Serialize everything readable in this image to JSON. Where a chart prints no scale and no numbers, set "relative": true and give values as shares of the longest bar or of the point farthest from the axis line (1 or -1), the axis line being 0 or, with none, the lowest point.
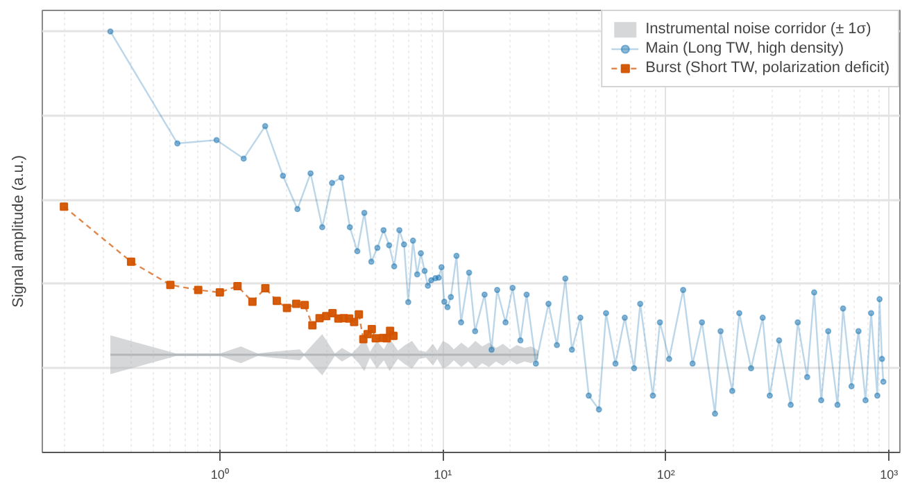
{
  "chart_data": {
    "type": "line",
    "ylabel": "Signal amplitude (a.u.)",
    "relative": true,
    "log": "x",
    "xlim": [
      0.16,
      1120
    ],
    "xticks": [
      {
        "value": 1,
        "label": "10⁰"
      },
      {
        "value": 10,
        "label": "10¹"
      },
      {
        "value": 100,
        "label": "10²"
      },
      {
        "value": 1000,
        "label": "10³"
      }
    ],
    "tick_labels": "x",
    "grid": true,
    "legend": "top right",
    "series": [
      {
        "name": "Instrumental noise corridor (± 1σ)",
        "color": "#b3b7b9",
        "x": [
          0.323,
          0.638,
          1.0,
          1.243,
          1.478,
          1.709,
          2.283,
          2.385,
          2.878,
          3.28,
          3.526,
          3.9,
          4.195,
          4.445,
          4.71,
          5.06,
          5.44,
          5.77,
          6.29,
          6.77,
          7.27,
          7.82,
          8.41,
          9.03,
          9.44,
          10.0,
          10.6,
          11.2,
          12.1,
          13.0,
          14.0,
          15.0,
          16.1,
          17.3,
          18.6,
          20.0,
          21.5,
          23.2,
          24.9,
          26.8
        ],
        "values": [
          0.232,
          0.232,
          0.232,
          0.232,
          0.232,
          0.232,
          0.232,
          0.232,
          0.232,
          0.232,
          0.232,
          0.232,
          0.232,
          0.232,
          0.232,
          0.232,
          0.232,
          0.232,
          0.232,
          0.232,
          0.232,
          0.232,
          0.232,
          0.232,
          0.232,
          0.232,
          0.232,
          0.232,
          0.232,
          0.232,
          0.232,
          0.232,
          0.232,
          0.232,
          0.232,
          0.232,
          0.232,
          0.232,
          0.232,
          0.232
        ],
        "lower": [
          0.186,
          0.229,
          0.229,
          0.212,
          0.229,
          0.225,
          0.219,
          0.23,
          0.183,
          0.229,
          0.216,
          0.229,
          0.212,
          0.193,
          0.225,
          0.199,
          0.219,
          0.193,
          0.222,
          0.209,
          0.199,
          0.222,
          0.225,
          0.206,
          0.222,
          0.199,
          0.206,
          0.219,
          0.203,
          0.216,
          0.199,
          0.212,
          0.203,
          0.216,
          0.206,
          0.219,
          0.209,
          0.216,
          0.212,
          0.222
        ],
        "upper": [
          0.278,
          0.235,
          0.235,
          0.252,
          0.235,
          0.239,
          0.245,
          0.234,
          0.281,
          0.235,
          0.248,
          0.235,
          0.252,
          0.271,
          0.239,
          0.265,
          0.245,
          0.271,
          0.242,
          0.255,
          0.265,
          0.242,
          0.239,
          0.258,
          0.242,
          0.265,
          0.258,
          0.245,
          0.261,
          0.248,
          0.265,
          0.252,
          0.261,
          0.248,
          0.258,
          0.245,
          0.255,
          0.248,
          0.252,
          0.242
        ]
      },
      {
        "name": "Main (Long TW, high density)",
        "color": "#1f77b4",
        "marker": "circle",
        "line_style": "solid",
        "x": [
          0.323,
          0.645,
          0.967,
          1.279,
          1.597,
          1.919,
          2.228,
          2.552,
          2.878,
          3.185,
          3.511,
          3.828,
          4.135,
          4.445,
          4.777,
          5.087,
          5.42,
          5.743,
          6.05,
          6.383,
          6.696,
          6.994,
          7.345,
          7.671,
          7.966,
          8.283,
          8.566,
          8.869,
          9.262,
          9.575,
          9.856,
          10.15,
          10.49,
          10.86,
          11.51,
          12.07,
          13.11,
          13.95,
          15.38,
          16.53,
          17.52,
          19.1,
          20.54,
          22.27,
          23.74,
          26.12,
          29.76,
          32.45,
          35.41,
          37.9,
          41.35,
          45.1,
          50.1,
          53.9,
          59.4,
          65.4,
          72.0,
          76.7,
          87.4,
          94.0,
          103.4,
          119.5,
          131.7,
          145.1,
          166.0,
          175.9,
          198.4,
          213.3,
          240.9,
          271.6,
          292.1,
          321.8,
          362.8,
          390.1,
          429.9,
          462.2,
          496.9,
          534.3,
          587.8,
          622.8,
          679.4,
          730.3,
          785.2,
          832.0,
          886.9,
          907.8,
          930.4,
          943.8
        ],
        "values": [
          1.0,
          0.734,
          0.742,
          0.698,
          0.775,
          0.657,
          0.578,
          0.663,
          0.535,
          0.64,
          0.653,
          0.535,
          0.478,
          0.569,
          0.453,
          0.486,
          0.528,
          0.492,
          0.442,
          0.528,
          0.494,
          0.357,
          0.503,
          0.423,
          0.473,
          0.431,
          0.396,
          0.409,
          0.414,
          0.415,
          0.44,
          0.358,
          0.345,
          0.369,
          0.467,
          0.309,
          0.427,
          0.288,
          0.375,
          0.244,
          0.386,
          0.309,
          0.391,
          0.266,
          0.375,
          0.211,
          0.353,
          0.255,
          0.413,
          0.244,
          0.32,
          0.135,
          0.102,
          0.331,
          0.211,
          0.32,
          0.2,
          0.353,
          0.135,
          0.309,
          0.222,
          0.386,
          0.211,
          0.309,
          0.092,
          0.288,
          0.146,
          0.331,
          0.2,
          0.32,
          0.135,
          0.266,
          0.113,
          0.309,
          0.179,
          0.38,
          0.124,
          0.288,
          0.113,
          0.342,
          0.157,
          0.288,
          0.124,
          0.331,
          0.135,
          0.364,
          0.222,
          0.168
        ]
      },
      {
        "name": "Burst (Short TW, polarization deficit)",
        "color": "#d35400",
        "marker": "square",
        "line_style": "dashed",
        "x": [
          0.2,
          0.4,
          0.6,
          0.8,
          1.0,
          1.2,
          1.4,
          1.6,
          1.8,
          2.0,
          2.2,
          2.4,
          2.6,
          2.8,
          3.0,
          3.2,
          3.4,
          3.6,
          3.8,
          4.0,
          4.2,
          4.4,
          4.6,
          4.8,
          5.0,
          5.4,
          5.6,
          5.8,
          6.0
        ],
        "values": [
          0.584,
          0.453,
          0.398,
          0.386,
          0.38,
          0.395,
          0.358,
          0.39,
          0.36,
          0.343,
          0.353,
          0.35,
          0.302,
          0.319,
          0.324,
          0.331,
          0.318,
          0.319,
          0.318,
          0.31,
          0.328,
          0.269,
          0.281,
          0.293,
          0.271,
          0.272,
          0.271,
          0.289,
          0.277
        ]
      }
    ]
  }
}
